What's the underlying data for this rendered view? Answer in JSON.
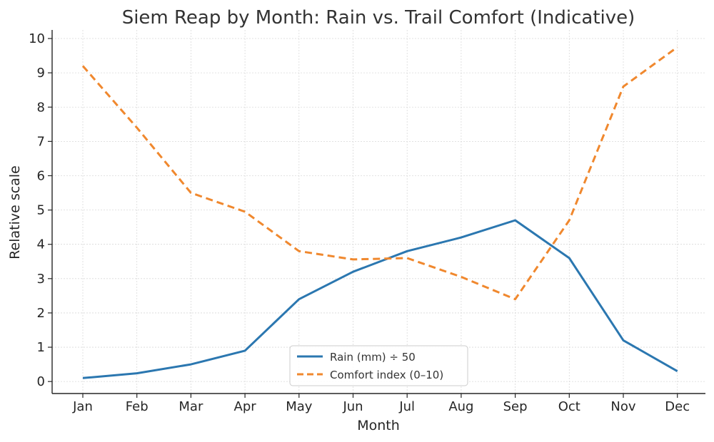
{
  "chart_data": {
    "type": "line",
    "title": "Siem Reap by Month: Rain vs. Trail Comfort (Indicative)",
    "xlabel": "Month",
    "ylabel": "Relative scale",
    "categories": [
      "Jan",
      "Feb",
      "Mar",
      "Apr",
      "May",
      "Jun",
      "Jul",
      "Aug",
      "Sep",
      "Oct",
      "Nov",
      "Dec"
    ],
    "ylim": [
      -0.35,
      10.25
    ],
    "yticks": [
      "0",
      "1",
      "2",
      "3",
      "4",
      "5",
      "6",
      "7",
      "8",
      "9",
      "10"
    ],
    "grid": true,
    "legend_position": "bottom-center",
    "series": [
      {
        "name": "Rain (mm) ÷ 50",
        "values": [
          0.1,
          0.24,
          0.5,
          0.9,
          2.4,
          3.2,
          3.8,
          4.2,
          4.7,
          3.6,
          1.2,
          0.3
        ],
        "color": "#2b77b0",
        "style": "solid"
      },
      {
        "name": "Comfort index (0–10)",
        "values": [
          9.2,
          7.4,
          5.5,
          4.95,
          3.8,
          3.56,
          3.6,
          3.05,
          2.4,
          4.7,
          8.6,
          9.75
        ],
        "color": "#f0882e",
        "style": "dashed"
      }
    ]
  }
}
